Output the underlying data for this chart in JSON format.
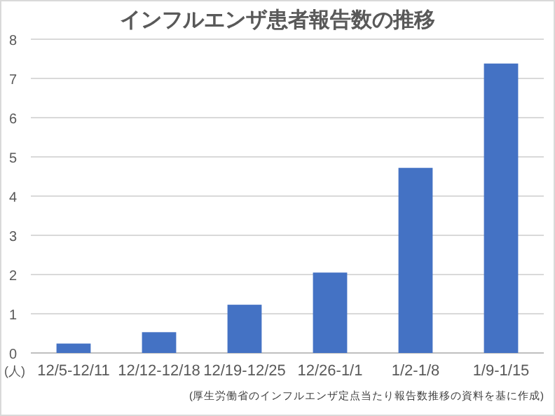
{
  "chart_data": {
    "type": "bar",
    "title": "インフルエンザ患者報告数の推移",
    "ylabel": "(人)",
    "categories": [
      "12/5-12/11",
      "12/12-12/18",
      "12/19-12/25",
      "12/26-1/1",
      "1/2-1/8",
      "1/9-1/15"
    ],
    "values": [
      0.24,
      0.53,
      1.23,
      2.05,
      4.72,
      7.38
    ],
    "color": "#4472c4",
    "ylim": [
      0,
      8
    ],
    "yticks": [
      0,
      1,
      2,
      3,
      4,
      5,
      6,
      7,
      8
    ],
    "grid": "y",
    "annotations": [
      "(厚生労働省のインフルエンザ定点当たり報告数推移の資料を基に作成)"
    ]
  }
}
